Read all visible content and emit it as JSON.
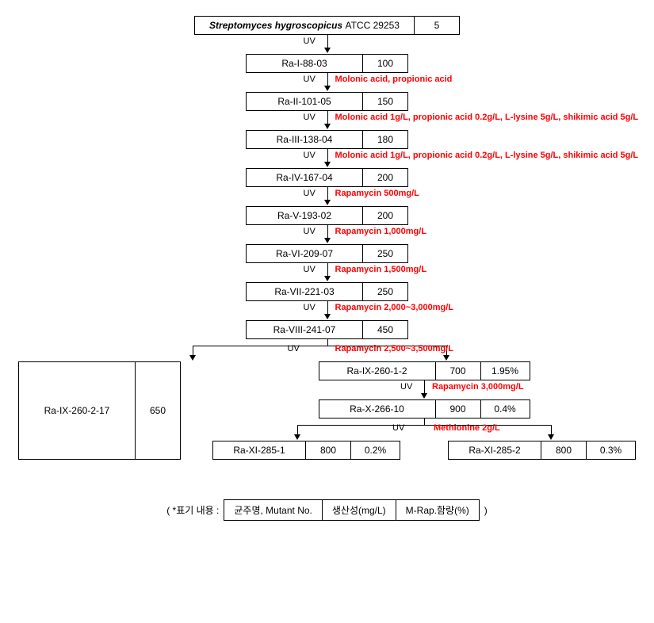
{
  "root": {
    "species_italic": "Streptomyces hygroscopicus",
    "atcc": "ATCC 29253",
    "value": "5"
  },
  "steps": [
    {
      "uv": "UV",
      "treatment": "",
      "label": "Ra-I-88-03",
      "value": "100"
    },
    {
      "uv": "UV",
      "treatment": "Molonic acid, propionic acid",
      "label": "Ra-II-101-05",
      "value": "150"
    },
    {
      "uv": "UV",
      "treatment": "Molonic acid 1g/L, propionic acid 0.2g/L, L-lysine 5g/L, shikimic acid 5g/L",
      "label": "Ra-III-138-04",
      "value": "180"
    },
    {
      "uv": "UV",
      "treatment": "Molonic acid 1g/L, propionic acid 0.2g/L, L-lysine 5g/L, shikimic acid 5g/L",
      "label": "Ra-IV-167-04",
      "value": "200"
    },
    {
      "uv": "UV",
      "treatment": "Rapamycin 500mg/L",
      "label": "Ra-V-193-02",
      "value": "200"
    },
    {
      "uv": "UV",
      "treatment": "Rapamycin 1,000mg/L",
      "label": "Ra-VI-209-07",
      "value": "250"
    },
    {
      "uv": "UV",
      "treatment": "Rapamycin 1,500mg/L",
      "label": "Ra-VII-221-03",
      "value": "250"
    },
    {
      "uv": "UV",
      "treatment": "Rapamycin 2,000~3,000mg/L",
      "label": "Ra-VIII-241-07",
      "value": "450"
    }
  ],
  "split1": {
    "uv": "UV",
    "treatment": "Rapamycin 2,500~3,500mg/L",
    "left": {
      "label": "Ra-IX-260-2-17",
      "value": "650"
    },
    "right": {
      "label": "Ra-IX-260-1-2",
      "value": "700",
      "pct": "1.95%"
    }
  },
  "step10": {
    "uv": "UV",
    "treatment": "Rapamycin 3,000mg/L",
    "label": "Ra-X-266-10",
    "value": "900",
    "pct": "0.4%"
  },
  "split2": {
    "uv": "UV",
    "treatment": "Methionine 2g/L",
    "left": {
      "label": "Ra-XI-285-1",
      "value": "800",
      "pct": "0.2%"
    },
    "right": {
      "label": "Ra-XI-285-2",
      "value": "800",
      "pct": "0.3%"
    }
  },
  "legend": {
    "prefix": "( *표기 내용 :",
    "c1": "균주명, Mutant No.",
    "c2": "생산성(mg/L)",
    "c3": "M-Rap.함량(%)",
    "suffix": ")"
  },
  "colors": {
    "treatment": "#ff0000",
    "border": "#000000",
    "bg": "#ffffff"
  }
}
